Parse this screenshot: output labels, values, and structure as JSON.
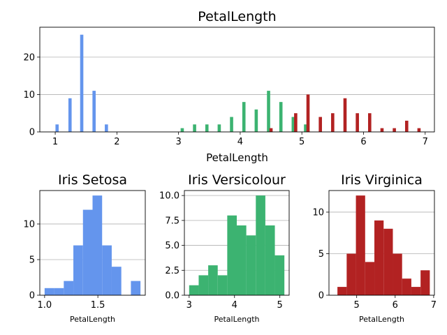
{
  "chart_data": [
    {
      "type": "bar",
      "title": "PetalLength",
      "xlabel": "PetalLength",
      "ylabel": "",
      "xlim": [
        0.75,
        7.15
      ],
      "ylim": [
        0,
        28
      ],
      "xticks": [
        1,
        2,
        3,
        4,
        5,
        6,
        7
      ],
      "yticks": [
        0,
        10,
        20
      ],
      "grid": "y",
      "series": [
        {
          "color": "#6495ed",
          "values": [
            {
              "x": 1.03,
              "y": 2
            },
            {
              "x": 1.24,
              "y": 9
            },
            {
              "x": 1.43,
              "y": 26
            },
            {
              "x": 1.63,
              "y": 11
            },
            {
              "x": 1.83,
              "y": 2
            }
          ]
        },
        {
          "color": "#3cb371",
          "values": [
            {
              "x": 3.06,
              "y": 1
            },
            {
              "x": 3.26,
              "y": 2
            },
            {
              "x": 3.46,
              "y": 2
            },
            {
              "x": 3.66,
              "y": 2
            },
            {
              "x": 3.86,
              "y": 4
            },
            {
              "x": 4.06,
              "y": 8
            },
            {
              "x": 4.26,
              "y": 6
            },
            {
              "x": 4.46,
              "y": 11
            },
            {
              "x": 4.66,
              "y": 8
            },
            {
              "x": 4.86,
              "y": 4
            },
            {
              "x": 5.06,
              "y": 2
            }
          ]
        },
        {
          "color": "#b22222",
          "values": [
            {
              "x": 4.5,
              "y": 1
            },
            {
              "x": 4.9,
              "y": 5
            },
            {
              "x": 5.1,
              "y": 10
            },
            {
              "x": 5.3,
              "y": 4
            },
            {
              "x": 5.5,
              "y": 5
            },
            {
              "x": 5.7,
              "y": 9
            },
            {
              "x": 5.9,
              "y": 5
            },
            {
              "x": 6.1,
              "y": 5
            },
            {
              "x": 6.3,
              "y": 1
            },
            {
              "x": 6.5,
              "y": 1
            },
            {
              "x": 6.7,
              "y": 3
            },
            {
              "x": 6.9,
              "y": 1
            }
          ]
        }
      ]
    },
    {
      "type": "bar",
      "title": "Iris Setosa",
      "xlabel": "PetalLength",
      "color": "#6495ed",
      "xlim": [
        0.955,
        1.945
      ],
      "ylim": [
        0,
        14.7
      ],
      "xticks": [
        1.0,
        1.5
      ],
      "xtick_labels": [
        "1.0",
        "1.5"
      ],
      "yticks": [
        0,
        5,
        10
      ],
      "grid": "y",
      "bin_edges": [
        1.0,
        1.09,
        1.18,
        1.27,
        1.36,
        1.45,
        1.54,
        1.63,
        1.72,
        1.81,
        1.9
      ],
      "values": [
        1,
        1,
        2,
        7,
        12,
        14,
        7,
        4,
        0,
        2
      ]
    },
    {
      "type": "bar",
      "title": "Iris Versicolour",
      "xlabel": "PetalLength",
      "color": "#3cb371",
      "xlim": [
        2.895,
        5.205
      ],
      "ylim": [
        0,
        10.5
      ],
      "xticks": [
        3,
        4,
        5
      ],
      "xtick_labels": [
        "3",
        "4",
        "5"
      ],
      "yticks": [
        0,
        2.5,
        5.0,
        7.5,
        10.0
      ],
      "ytick_labels": [
        "0.0",
        "2.5",
        "5.0",
        "7.5",
        "10.0"
      ],
      "grid": "y",
      "bin_edges": [
        3.0,
        3.21,
        3.42,
        3.63,
        3.84,
        4.05,
        4.26,
        4.47,
        4.68,
        4.89,
        5.1
      ],
      "values": [
        1,
        2,
        3,
        2,
        8,
        7,
        6,
        10,
        7,
        4
      ]
    },
    {
      "type": "bar",
      "title": "Iris Virginica",
      "xlabel": "PetalLength",
      "color": "#b22222",
      "xlim": [
        4.28,
        7.02
      ],
      "ylim": [
        0,
        12.6
      ],
      "xticks": [
        5,
        6,
        7
      ],
      "xtick_labels": [
        "5",
        "6",
        "7"
      ],
      "yticks": [
        0,
        5,
        10
      ],
      "grid": "y",
      "bin_edges": [
        4.5,
        4.74,
        4.98,
        5.22,
        5.46,
        5.7,
        5.94,
        6.18,
        6.42,
        6.66,
        6.9
      ],
      "values": [
        1,
        5,
        12,
        4,
        9,
        8,
        5,
        2,
        1,
        3
      ]
    }
  ]
}
